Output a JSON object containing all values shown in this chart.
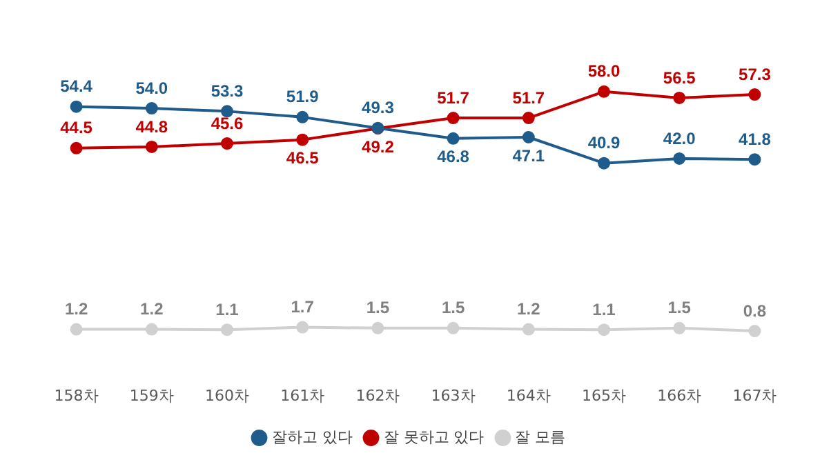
{
  "chart_data": {
    "type": "line",
    "categories": [
      "158차",
      "159차",
      "160차",
      "161차",
      "162차",
      "163차",
      "164차",
      "165차",
      "166차",
      "167차"
    ],
    "series": [
      {
        "name": "잘하고 있다",
        "color": "#1f5c8b",
        "values": [
          54.4,
          54.0,
          53.3,
          51.9,
          49.3,
          46.8,
          47.1,
          40.9,
          42.0,
          41.8
        ],
        "value_labels": [
          "54.4",
          "54.0",
          "53.3",
          "51.9",
          "49.3",
          "46.8",
          "47.1",
          "40.9",
          "42.0",
          "41.8"
        ]
      },
      {
        "name": "잘 못하고 있다",
        "color": "#c00000",
        "values": [
          44.5,
          44.8,
          45.6,
          46.5,
          49.2,
          51.7,
          51.7,
          58.0,
          56.5,
          57.3
        ],
        "value_labels": [
          "44.5",
          "44.8",
          "45.6",
          "46.5",
          "49.2",
          "51.7",
          "51.7",
          "58.0",
          "56.5",
          "57.3"
        ]
      },
      {
        "name": "잘 모름",
        "color": "#d0d0d0",
        "values": [
          1.2,
          1.2,
          1.1,
          1.7,
          1.5,
          1.5,
          1.2,
          1.1,
          1.5,
          0.8
        ],
        "value_labels": [
          "1.2",
          "1.2",
          "1.1",
          "1.7",
          "1.5",
          "1.5",
          "1.2",
          "1.1",
          "1.5",
          "0.8"
        ]
      }
    ],
    "tick_labels": "x",
    "legend": "bottom",
    "grid": false,
    "marker": "circle",
    "line_style": "solid"
  }
}
